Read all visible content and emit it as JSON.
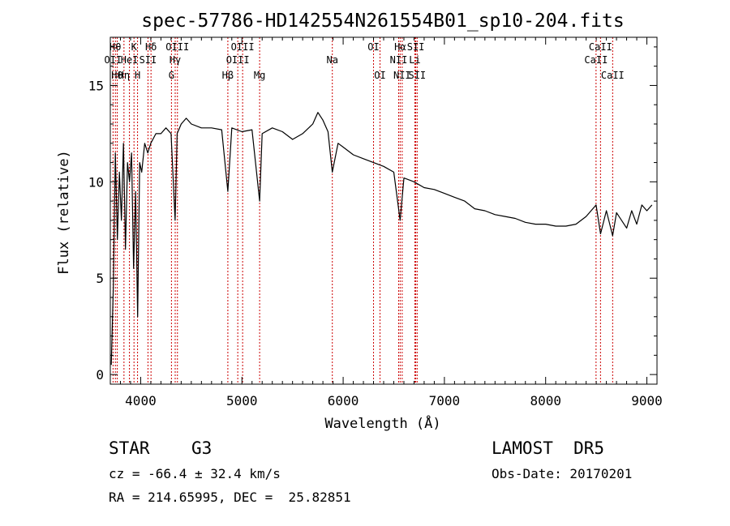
{
  "chart_data": {
    "type": "line",
    "title": "spec-57786-HD142554N261554B01_sp10-204.fits",
    "xlabel": "Wavelength (Å)",
    "ylabel": "Flux (relative)",
    "xlim": [
      3700,
      9100
    ],
    "ylim": [
      -0.5,
      17.5
    ],
    "x_ticks": [
      4000,
      5000,
      6000,
      7000,
      8000,
      9000
    ],
    "x_tick_labels": [
      "4000",
      "5000",
      "6000",
      "7000",
      "8000",
      "9000"
    ],
    "y_ticks": [
      0,
      5,
      10,
      15
    ],
    "y_tick_labels": [
      "0",
      "5",
      "10",
      "15"
    ],
    "grid": false,
    "line_color": "#000000",
    "marker_color": "#cc0000",
    "series": [
      {
        "x": [
          3710,
          3730,
          3750,
          3770,
          3790,
          3810,
          3830,
          3850,
          3870,
          3890,
          3910,
          3930,
          3950,
          3970,
          3990,
          4010,
          4040,
          4070,
          4100,
          4150,
          4200,
          4250,
          4300,
          4340,
          4360,
          4400,
          4450,
          4500,
          4600,
          4700,
          4800,
          4861,
          4900,
          5000,
          5100,
          5175,
          5200,
          5300,
          5400,
          5500,
          5600,
          5700,
          5750,
          5800,
          5850,
          5893,
          5950,
          6000,
          6100,
          6200,
          6300,
          6400,
          6500,
          6563,
          6600,
          6700,
          6800,
          6900,
          7000,
          7100,
          7200,
          7300,
          7400,
          7500,
          7600,
          7700,
          7800,
          7900,
          8000,
          8100,
          8200,
          8300,
          8400,
          8498,
          8542,
          8600,
          8662,
          8700,
          8800,
          8850,
          8900,
          8950,
          9000,
          9050
        ],
        "y": [
          0.5,
          4.5,
          11.5,
          7.0,
          10.5,
          8.0,
          12.0,
          6.5,
          11.0,
          10.0,
          11.5,
          5.5,
          9.5,
          3.0,
          11.0,
          10.5,
          12.0,
          11.5,
          12.0,
          12.5,
          12.5,
          12.8,
          12.5,
          8.0,
          12.5,
          13.0,
          13.3,
          13.0,
          12.8,
          12.8,
          12.7,
          9.5,
          12.8,
          12.6,
          12.7,
          9.0,
          12.5,
          12.8,
          12.6,
          12.2,
          12.5,
          13.0,
          13.6,
          13.2,
          12.6,
          10.5,
          12.0,
          11.8,
          11.4,
          11.2,
          11.0,
          10.8,
          10.5,
          8.0,
          10.2,
          10.0,
          9.7,
          9.6,
          9.4,
          9.2,
          9.0,
          8.6,
          8.5,
          8.3,
          8.2,
          8.1,
          7.9,
          7.8,
          7.8,
          7.7,
          7.7,
          7.8,
          8.2,
          8.8,
          7.3,
          8.5,
          7.2,
          8.4,
          7.6,
          8.5,
          7.8,
          8.8,
          8.5,
          8.8
        ]
      }
    ],
    "lines": [
      {
        "wavelength": 3727,
        "label": "OII",
        "row": 2
      },
      {
        "wavelength": 3750,
        "label": "Hθ",
        "row": 1
      },
      {
        "wavelength": 3768,
        "label": "Hθ",
        "row": 3
      },
      {
        "wavelength": 3835,
        "label": "Hη",
        "row": 3
      },
      {
        "wavelength": 3889,
        "label": "HeI",
        "row": 2
      },
      {
        "wavelength": 3934,
        "label": "K",
        "row": 1
      },
      {
        "wavelength": 3969,
        "label": "H",
        "row": 3
      },
      {
        "wavelength": 4072,
        "label": "SII",
        "row": 2
      },
      {
        "wavelength": 4102,
        "label": "Hδ",
        "row": 1
      },
      {
        "wavelength": 4304,
        "label": "G",
        "row": 3
      },
      {
        "wavelength": 4341,
        "label": "Hγ",
        "row": 2
      },
      {
        "wavelength": 4363,
        "label": "OIII",
        "row": 1
      },
      {
        "wavelength": 4861,
        "label": "Hβ",
        "row": 3
      },
      {
        "wavelength": 4959,
        "label": "OIII",
        "row": 2
      },
      {
        "wavelength": 5007,
        "label": "OIII",
        "row": 1
      },
      {
        "wavelength": 5175,
        "label": "Mg",
        "row": 3
      },
      {
        "wavelength": 5893,
        "label": "Na",
        "row": 2
      },
      {
        "wavelength": 6300,
        "label": "OI",
        "row": 1
      },
      {
        "wavelength": 6364,
        "label": "OI",
        "row": 3
      },
      {
        "wavelength": 6548,
        "label": "NII",
        "row": 2
      },
      {
        "wavelength": 6563,
        "label": "Hα",
        "row": 1
      },
      {
        "wavelength": 6583,
        "label": "NII",
        "row": 3
      },
      {
        "wavelength": 6708,
        "label": "Li",
        "row": 2
      },
      {
        "wavelength": 6717,
        "label": "SII",
        "row": 1
      },
      {
        "wavelength": 6731,
        "label": "SII",
        "row": 3
      },
      {
        "wavelength": 8498,
        "label": "CaII",
        "row": 2
      },
      {
        "wavelength": 8542,
        "label": "CaII",
        "row": 1
      },
      {
        "wavelength": 8662,
        "label": "CaII",
        "row": 3
      }
    ]
  },
  "info": {
    "object_class": "STAR",
    "subclass": "G3",
    "survey": "LAMOST  DR5",
    "redshift": "cz = -66.4 ± 32.4 km/s",
    "obs_date": "Obs-Date: 20170201",
    "coordinates": "RA = 214.65995, DEC =  25.82851"
  }
}
